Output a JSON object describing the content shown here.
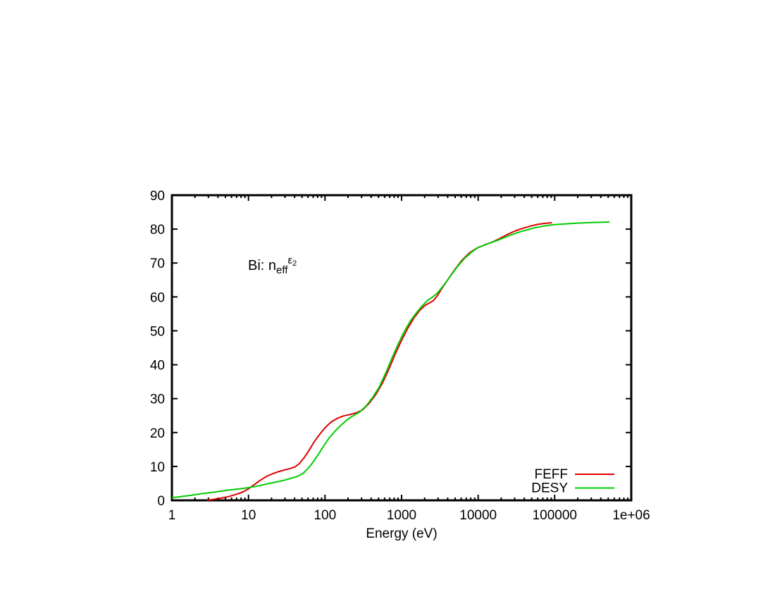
{
  "page": {
    "background": "#ffffff",
    "text_color": "#000000"
  },
  "chart_data": {
    "type": "line",
    "title": {
      "prefix": "Bi: n",
      "sub": "eff",
      "sup": "ε",
      "sup_sub": "2"
    },
    "xlabel": "Energy (eV)",
    "ylabel": "",
    "x_scale": "log",
    "xlim": [
      1,
      1000000
    ],
    "ylim": [
      0,
      90
    ],
    "grid": false,
    "legend_position": "bottom-right",
    "x_ticks": [
      {
        "v": 1,
        "label": "1"
      },
      {
        "v": 10,
        "label": "10"
      },
      {
        "v": 100,
        "label": "100"
      },
      {
        "v": 1000,
        "label": "1000"
      },
      {
        "v": 10000,
        "label": "10000"
      },
      {
        "v": 100000,
        "label": "100000"
      },
      {
        "v": 1000000,
        "label": "1e+06"
      }
    ],
    "y_ticks": [
      {
        "v": 0,
        "label": "0"
      },
      {
        "v": 10,
        "label": "10"
      },
      {
        "v": 20,
        "label": "20"
      },
      {
        "v": 30,
        "label": "30"
      },
      {
        "v": 40,
        "label": "40"
      },
      {
        "v": 50,
        "label": "50"
      },
      {
        "v": 60,
        "label": "60"
      },
      {
        "v": 70,
        "label": "70"
      },
      {
        "v": 80,
        "label": "80"
      },
      {
        "v": 90,
        "label": "90"
      }
    ],
    "series": [
      {
        "name": "FEFF",
        "color": "#dd0000",
        "points": [
          [
            2.9,
            0.05
          ],
          [
            3.5,
            0.3
          ],
          [
            4.5,
            0.7
          ],
          [
            5.5,
            1.1
          ],
          [
            7,
            1.8
          ],
          [
            8.5,
            2.5
          ],
          [
            10,
            3.4
          ],
          [
            12,
            4.7
          ],
          [
            14,
            5.8
          ],
          [
            16,
            6.6
          ],
          [
            18,
            7.3
          ],
          [
            21,
            7.9
          ],
          [
            25,
            8.5
          ],
          [
            30,
            9.0
          ],
          [
            35,
            9.4
          ],
          [
            40,
            9.8
          ],
          [
            46,
            10.8
          ],
          [
            53,
            12.5
          ],
          [
            62,
            14.8
          ],
          [
            72,
            17.2
          ],
          [
            84,
            19.3
          ],
          [
            100,
            21.4
          ],
          [
            120,
            23.1
          ],
          [
            145,
            24.2
          ],
          [
            175,
            24.9
          ],
          [
            210,
            25.3
          ],
          [
            255,
            25.8
          ],
          [
            310,
            26.7
          ],
          [
            380,
            28.7
          ],
          [
            460,
            31.2
          ],
          [
            560,
            34.5
          ],
          [
            680,
            38.6
          ],
          [
            820,
            43.0
          ],
          [
            1000,
            47.2
          ],
          [
            1200,
            50.7
          ],
          [
            1450,
            53.8
          ],
          [
            1750,
            56.2
          ],
          [
            2050,
            57.6
          ],
          [
            2350,
            58.3
          ],
          [
            2600,
            58.9
          ],
          [
            2900,
            60.2
          ],
          [
            3400,
            62.7
          ],
          [
            4100,
            65.4
          ],
          [
            5000,
            68.2
          ],
          [
            6200,
            70.9
          ],
          [
            7700,
            73.0
          ],
          [
            9500,
            74.3
          ],
          [
            12000,
            75.3
          ],
          [
            15000,
            76.1
          ],
          [
            19000,
            77.2
          ],
          [
            24000,
            78.4
          ],
          [
            30000,
            79.4
          ],
          [
            38000,
            80.2
          ],
          [
            48000,
            80.9
          ],
          [
            60000,
            81.4
          ],
          [
            75000,
            81.7
          ],
          [
            92000,
            81.9
          ]
        ]
      },
      {
        "name": "DESY",
        "color": "#00cc00",
        "points": [
          [
            1,
            0.8
          ],
          [
            1.3,
            1.1
          ],
          [
            1.8,
            1.5
          ],
          [
            2.5,
            2.0
          ],
          [
            3.5,
            2.4
          ],
          [
            5,
            2.9
          ],
          [
            7,
            3.3
          ],
          [
            9,
            3.6
          ],
          [
            11.5,
            4.0
          ],
          [
            14.5,
            4.4
          ],
          [
            18,
            4.9
          ],
          [
            23,
            5.4
          ],
          [
            29,
            5.9
          ],
          [
            36,
            6.5
          ],
          [
            44,
            7.1
          ],
          [
            52,
            8.0
          ],
          [
            60,
            9.4
          ],
          [
            70,
            11.3
          ],
          [
            82,
            13.6
          ],
          [
            96,
            16.0
          ],
          [
            113,
            18.4
          ],
          [
            135,
            20.4
          ],
          [
            162,
            22.2
          ],
          [
            195,
            23.8
          ],
          [
            235,
            25.0
          ],
          [
            285,
            26.1
          ],
          [
            345,
            27.9
          ],
          [
            420,
            30.4
          ],
          [
            510,
            33.4
          ],
          [
            620,
            37.5
          ],
          [
            750,
            42.0
          ],
          [
            900,
            46.0
          ],
          [
            1080,
            49.7
          ],
          [
            1300,
            52.9
          ],
          [
            1570,
            55.4
          ],
          [
            1880,
            57.5
          ],
          [
            2200,
            59.0
          ],
          [
            2550,
            60.0
          ],
          [
            2950,
            61.2
          ],
          [
            3500,
            63.3
          ],
          [
            4300,
            66.0
          ],
          [
            5300,
            68.8
          ],
          [
            6600,
            71.3
          ],
          [
            8200,
            73.2
          ],
          [
            10000,
            74.6
          ],
          [
            12500,
            75.4
          ],
          [
            15500,
            76.2
          ],
          [
            19500,
            77.0
          ],
          [
            25000,
            78.0
          ],
          [
            32000,
            78.9
          ],
          [
            42000,
            79.7
          ],
          [
            55000,
            80.4
          ],
          [
            72000,
            80.9
          ],
          [
            95000,
            81.3
          ],
          [
            130000,
            81.5
          ],
          [
            180000,
            81.7
          ],
          [
            260000,
            81.9
          ],
          [
            380000,
            82.0
          ],
          [
            520000,
            82.1
          ]
        ]
      }
    ]
  }
}
